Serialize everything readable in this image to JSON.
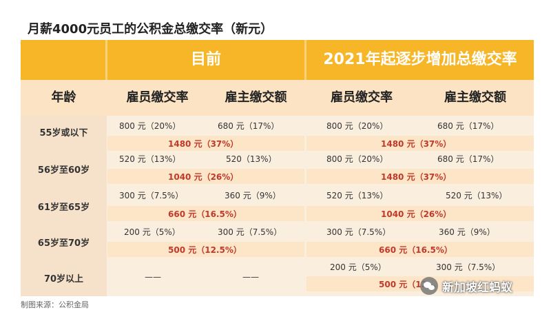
{
  "title": "月薪4000元员工的公积金总缴交率（新元）",
  "header": {
    "current": "目前",
    "future": "2021年起逐步增加总缴交率"
  },
  "subheader": {
    "age": "年龄",
    "employee_rate": "雇员缴交率",
    "employer_amount": "雇主缴交额",
    "employee_rate_2": "雇员缴交率",
    "employer_amount_2": "雇主缴交额"
  },
  "rows": [
    {
      "age": "55岁或以下",
      "cur_employee": "800 元（20%）",
      "cur_employer": "680 元（17%）",
      "cur_total": "1480 元（37%）",
      "new_employee": "800 元（20%）",
      "new_employer": "680 元（17%）",
      "new_total": "1480 元（37%）"
    },
    {
      "age": "56岁至60岁",
      "cur_employee": "520 元（13%）",
      "cur_employer": "520（13%）",
      "cur_total": "1040 元（26%）",
      "new_employee": "800 元（20%）",
      "new_employer": "680 元（17%）",
      "new_total": "1480 元（37%）"
    },
    {
      "age": "61岁至65岁",
      "cur_employee": "300 元（7.5%）",
      "cur_employer": "360 元（9%）",
      "cur_total": "660 元（16.5%）",
      "new_employee": "520 元（13%）",
      "new_employer": "520 元（13%）",
      "new_total": "1040 元（26%）"
    },
    {
      "age": "65岁至70岁",
      "cur_employee": "200 元（5%）",
      "cur_employer": "300 元（7.5%）",
      "cur_total": "500 元（12.5%）",
      "new_employee": "300 元（7.5%）",
      "new_employer": "360 元（9%）",
      "new_total": "660 元（16.5%）"
    },
    {
      "age": "70岁以上",
      "cur_employee": "——",
      "cur_employer": "——",
      "cur_total": "",
      "new_employee": "200 元（5%）",
      "new_employer": "300 元（7.5%）",
      "new_total": "500 元（12..."
    }
  ],
  "source": "制图来源：公积金局",
  "watermark": {
    "icon": "wechat-icon",
    "text": "新加坡红蚂蚁"
  },
  "colors": {
    "header": "#f7b627",
    "subheader": "#fbe3c4",
    "total_text": "#c0392b"
  }
}
